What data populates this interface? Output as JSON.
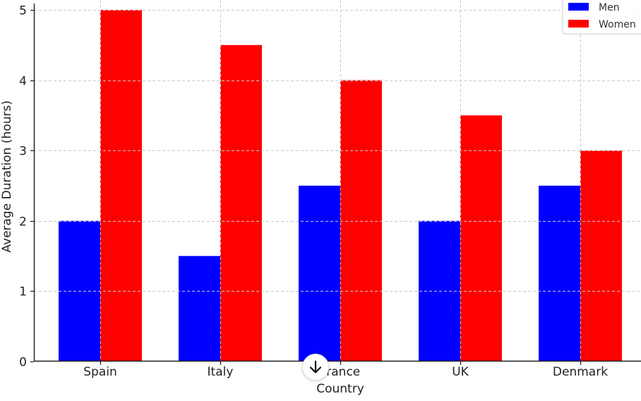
{
  "chart_data": {
    "type": "bar",
    "title": "",
    "xlabel": "Country",
    "ylabel": "Average Duration (hours)",
    "categories": [
      "Spain",
      "Italy",
      "France",
      "UK",
      "Denmark"
    ],
    "series": [
      {
        "name": "Men",
        "color": "#0000ff",
        "values": [
          2,
          1.5,
          2.5,
          2,
          2.5
        ]
      },
      {
        "name": "Women",
        "color": "#ff0000",
        "values": [
          5,
          4.5,
          4,
          3.5,
          3
        ]
      }
    ],
    "ylim": [
      0,
      5
    ],
    "yticks": [
      0,
      1,
      2,
      3,
      4,
      5
    ],
    "grid": true,
    "legend_position": "top-right"
  },
  "ui": {
    "scroll_down_icon": "arrow-down-icon"
  }
}
